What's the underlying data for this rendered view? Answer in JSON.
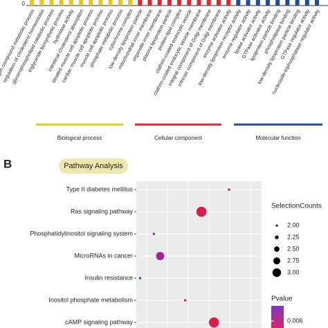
{
  "chart_data": [
    {
      "type": "bar",
      "yticks": [
        0
      ],
      "groups": [
        {
          "name": "Biological process",
          "color": "#e8c51a",
          "categories": [
            "organonitrogen compound metabolic process",
            "regulation of cholesterol homeostasis",
            "glycerophospholipid catabolic process",
            "triglyceride biosynthetic process",
            "hydrolase activity",
            "intestinal cholesterol absorption",
            "striated muscle cell apoptotic process",
            "cardiac muscle cell apoptotic process",
            "muscle cell apoptotic process",
            "phosphate metabolic process",
            "cytochrome complex"
          ]
        },
        {
          "name": "Cellular component",
          "color": "#e0262e",
          "categories": [
            "low-density lipoprotein particle",
            "mitochondrial inner membrane",
            "organelle inner membrane",
            "plasma lipoprotein particle",
            "protein-lipid complex",
            "clathrin-coated endocytic vesicle",
            "clathrin-coated endocytic vesicle membrane",
            "integral component of Golgi membrane",
            "intrinsic component of Golgi membrane",
            "enzyme activator activity"
          ]
        },
        {
          "name": "Molecular function",
          "color": "#1f4e96",
          "categories": [
            "low-density lipoprotein receptor activity",
            "enzyme regulator activity",
            "lipase activator activity",
            "GTPase activator activity",
            "lipoprotein particle binding",
            "phospholipase binding",
            "low-density lipoprotein particle binding",
            "GTPase regulator activity",
            "nucleoside-triphosphatase regulator activity"
          ]
        }
      ]
    },
    {
      "type": "scatter",
      "panel": "B",
      "title": "Pathway Analysis",
      "categories": [
        "Type II diabetes mellitus",
        "Ras signaling pathway",
        "Phosphatidylinositol signaling system",
        "MicroRNAs in cancer",
        "Insulin resistance",
        "Inositol phosphate metabolism",
        "cAMP signaling pathway"
      ],
      "x": [
        0.74,
        0.52,
        0.14,
        0.19,
        0.03,
        0.39,
        0.62
      ],
      "sizes": [
        2,
        3,
        2,
        2.75,
        2,
        2,
        3
      ],
      "colors": [
        "#e3203a",
        "#d61c4e",
        "#9a2cb0",
        "#a3259c",
        "#3452c4",
        "#e02244",
        "#d81e4c"
      ],
      "xlim": [
        0,
        1
      ],
      "size_legend": {
        "title": "SelectionCounts",
        "values": [
          {
            "value": 2,
            "label": "2.00"
          },
          2.25,
          {
            "value": 2.5,
            "label": "2.50"
          },
          2.75,
          {
            "value": 3,
            "label": "3.00"
          }
        ]
      },
      "color_legend": {
        "title": "Pvalue",
        "ticks": [
          0.006
        ]
      }
    }
  ]
}
